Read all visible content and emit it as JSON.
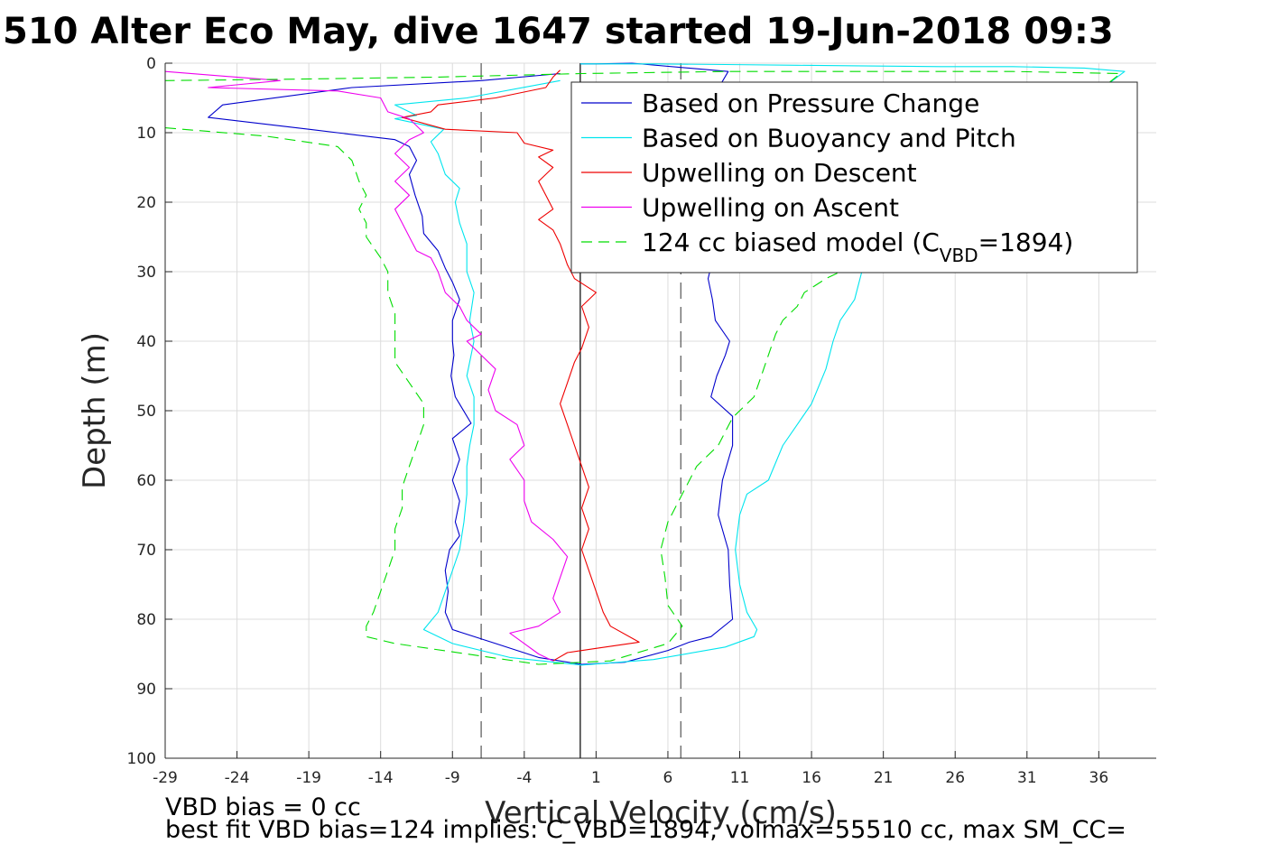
{
  "title": "510 Alter Eco May, dive 1647 started 19-Jun-2018 09:3",
  "footer": {
    "line1": "VBD bias = 0 cc",
    "line2": "best fit VBD bias=124 implies: C_VBD=1894, volmax=55510 cc, max SM_CC="
  },
  "chart_data": {
    "type": "line",
    "xlabel": "Vertical Velocity (cm/s)",
    "ylabel": "Depth (m)",
    "xlim": [
      -29,
      40
    ],
    "ylim": [
      0,
      100
    ],
    "y_reversed": true,
    "grid": true,
    "legend_placement": "top-right",
    "xticks": [
      -29,
      -24,
      -19,
      -14,
      -9,
      -4,
      1,
      6,
      11,
      16,
      21,
      26,
      31,
      36
    ],
    "yticks": [
      0,
      10,
      20,
      30,
      40,
      50,
      60,
      70,
      80,
      90,
      100
    ],
    "reference_lines": [
      {
        "type": "vertical",
        "x": -0.1,
        "style": "solid",
        "color": "#000000"
      },
      {
        "type": "vertical",
        "x": -7,
        "style": "dashed",
        "color": "#555555"
      },
      {
        "type": "vertical",
        "x": 6.9,
        "style": "dashed",
        "color": "#555555"
      }
    ],
    "series": [
      {
        "name": "Based on Pressure Change",
        "color": "#0000cc",
        "style": "solid",
        "points": [
          [
            -1.5,
            1.5
          ],
          [
            -7,
            2.5
          ],
          [
            -16,
            3.5
          ],
          [
            -25,
            6
          ],
          [
            -26,
            7.8
          ],
          [
            -19,
            9.5
          ],
          [
            -13,
            11
          ],
          [
            -12,
            12
          ],
          [
            -11.5,
            14
          ],
          [
            -12,
            16
          ],
          [
            -11.6,
            19
          ],
          [
            -11.1,
            22
          ],
          [
            -11,
            24.5
          ],
          [
            -10,
            27
          ],
          [
            -9.5,
            29.5
          ],
          [
            -9,
            31.5
          ],
          [
            -8.5,
            34
          ],
          [
            -9,
            37
          ],
          [
            -9,
            40
          ],
          [
            -8.9,
            42
          ],
          [
            -9.1,
            45
          ],
          [
            -8.8,
            48
          ],
          [
            -7.7,
            51.8
          ],
          [
            -9,
            54
          ],
          [
            -8.5,
            57
          ],
          [
            -9,
            60
          ],
          [
            -8.5,
            63
          ],
          [
            -8.8,
            66
          ],
          [
            -8.5,
            68
          ],
          [
            -9.2,
            70
          ],
          [
            -9.5,
            73
          ],
          [
            -9.3,
            76
          ],
          [
            -9.5,
            79
          ],
          [
            -9,
            81.5
          ],
          [
            -6,
            83.5
          ],
          [
            -3,
            85.5
          ],
          [
            0,
            86.5
          ],
          [
            3,
            86.2
          ],
          [
            6,
            84.5
          ],
          [
            7.5,
            83.3
          ],
          [
            9,
            82.5
          ],
          [
            10.5,
            80
          ],
          [
            10.3,
            75
          ],
          [
            10.2,
            70
          ],
          [
            9.5,
            65
          ],
          [
            9.8,
            60
          ],
          [
            10.5,
            55
          ],
          [
            10.5,
            50.8
          ],
          [
            9,
            48
          ],
          [
            9.4,
            45
          ],
          [
            10,
            42
          ],
          [
            10.3,
            40
          ],
          [
            9.3,
            37
          ],
          [
            9.1,
            34
          ],
          [
            8.8,
            31
          ],
          [
            9.5,
            25
          ],
          [
            10,
            18
          ],
          [
            9,
            8
          ],
          [
            9.4,
            4
          ],
          [
            10.2,
            1.2
          ],
          [
            3.5,
            0
          ],
          [
            1,
            0.1
          ],
          [
            -0.1,
            0.1
          ]
        ]
      },
      {
        "name": "Based on Buoyancy and Pitch",
        "color": "#00e5ee",
        "style": "solid",
        "points": [
          [
            -1.5,
            2.5
          ],
          [
            -8,
            5
          ],
          [
            -13,
            6
          ],
          [
            -11.5,
            7.5
          ],
          [
            -13,
            8
          ],
          [
            -9.6,
            9.5
          ],
          [
            -10.5,
            11.3
          ],
          [
            -10,
            13
          ],
          [
            -9.5,
            16
          ],
          [
            -8.5,
            18
          ],
          [
            -8.8,
            20
          ],
          [
            -8.5,
            23
          ],
          [
            -8,
            26
          ],
          [
            -8,
            30
          ],
          [
            -7.5,
            33
          ],
          [
            -7.8,
            37
          ],
          [
            -7.5,
            40
          ],
          [
            -8,
            45
          ],
          [
            -7.5,
            48
          ],
          [
            -7.5,
            52
          ],
          [
            -7.8,
            55
          ],
          [
            -8,
            58
          ],
          [
            -8,
            62
          ],
          [
            -8.2,
            66
          ],
          [
            -8.5,
            70
          ],
          [
            -9,
            73
          ],
          [
            -9.5,
            76
          ],
          [
            -10,
            79
          ],
          [
            -11,
            81.5
          ],
          [
            -9,
            83.5
          ],
          [
            -5,
            85.5
          ],
          [
            0,
            86.6
          ],
          [
            5,
            85.8
          ],
          [
            10,
            84
          ],
          [
            12,
            82.5
          ],
          [
            12.2,
            81.5
          ],
          [
            11.5,
            79
          ],
          [
            11,
            75
          ],
          [
            10.7,
            70
          ],
          [
            11,
            65
          ],
          [
            11.5,
            62
          ],
          [
            13,
            60
          ],
          [
            14,
            55
          ],
          [
            15,
            52
          ],
          [
            16,
            49
          ],
          [
            17,
            44
          ],
          [
            17.5,
            40
          ],
          [
            18,
            37
          ],
          [
            19,
            34
          ],
          [
            19.5,
            30
          ],
          [
            23,
            28
          ],
          [
            26,
            24
          ],
          [
            28,
            20
          ],
          [
            30,
            16
          ],
          [
            32,
            11
          ],
          [
            34,
            7
          ],
          [
            36,
            4
          ],
          [
            37.8,
            1.2
          ],
          [
            35,
            0.7
          ],
          [
            30,
            0.5
          ],
          [
            25,
            0.5
          ],
          [
            20,
            0.4
          ],
          [
            15,
            0.3
          ],
          [
            10,
            0.2
          ],
          [
            5,
            0.1
          ],
          [
            -0.1,
            0.1
          ]
        ]
      },
      {
        "name": "Upwelling on Descent",
        "color": "#ee0000",
        "style": "solid",
        "points": [
          [
            -1.5,
            1
          ],
          [
            -2,
            2
          ],
          [
            -2.5,
            3.5
          ],
          [
            -6,
            5
          ],
          [
            -10,
            6
          ],
          [
            -10.5,
            7
          ],
          [
            -12.5,
            7.8
          ],
          [
            -9.5,
            9.5
          ],
          [
            -4.5,
            10
          ],
          [
            -4,
            11.5
          ],
          [
            -2,
            12.5
          ],
          [
            -3,
            13.5
          ],
          [
            -2,
            15
          ],
          [
            -3,
            17
          ],
          [
            -2.5,
            19
          ],
          [
            -2,
            21
          ],
          [
            -3,
            22.5
          ],
          [
            -2,
            24
          ],
          [
            -1.5,
            26
          ],
          [
            -1,
            29
          ],
          [
            -0.5,
            31
          ],
          [
            1,
            33
          ],
          [
            0,
            35
          ],
          [
            0.5,
            38
          ],
          [
            0,
            41
          ],
          [
            -0.5,
            43
          ],
          [
            -1,
            46
          ],
          [
            -1.5,
            49
          ],
          [
            -1,
            52
          ],
          [
            -0.5,
            55
          ],
          [
            0,
            58
          ],
          [
            0.5,
            61
          ],
          [
            0,
            64
          ],
          [
            0.5,
            67
          ],
          [
            0,
            70
          ],
          [
            0.5,
            73
          ],
          [
            1,
            76
          ],
          [
            1.5,
            79
          ],
          [
            2,
            81
          ],
          [
            4,
            83.3
          ],
          [
            1,
            84.2
          ],
          [
            -1,
            84.8
          ],
          [
            -2,
            86
          ]
        ]
      },
      {
        "name": "Upwelling on Ascent",
        "color": "#ee00ee",
        "style": "solid",
        "points": [
          [
            -2,
            86
          ],
          [
            -3,
            85
          ],
          [
            -4,
            83.5
          ],
          [
            -5,
            82
          ],
          [
            -3,
            81
          ],
          [
            -1.5,
            79
          ],
          [
            -2,
            77
          ],
          [
            -1.5,
            74
          ],
          [
            -1,
            71
          ],
          [
            -2,
            68.5
          ],
          [
            -3.5,
            66
          ],
          [
            -4,
            63
          ],
          [
            -4,
            60
          ],
          [
            -5,
            57
          ],
          [
            -4,
            55
          ],
          [
            -4.5,
            52
          ],
          [
            -6,
            50
          ],
          [
            -6.5,
            47
          ],
          [
            -6,
            44
          ],
          [
            -7,
            42
          ],
          [
            -8,
            40
          ],
          [
            -7,
            39
          ],
          [
            -8,
            37
          ],
          [
            -8.5,
            35
          ],
          [
            -9.5,
            33
          ],
          [
            -10,
            30
          ],
          [
            -10.5,
            28
          ],
          [
            -11.5,
            27
          ],
          [
            -12,
            25
          ],
          [
            -12.5,
            23
          ],
          [
            -13,
            21
          ],
          [
            -12,
            19
          ],
          [
            -13,
            17
          ],
          [
            -12,
            15
          ],
          [
            -13,
            13
          ],
          [
            -12,
            11
          ],
          [
            -11,
            10
          ],
          [
            -12,
            8
          ],
          [
            -13.5,
            7
          ],
          [
            -14,
            5
          ],
          [
            -17,
            4
          ],
          [
            -26,
            3.5
          ],
          [
            -21,
            2.5
          ],
          [
            -29,
            1.2
          ]
        ]
      },
      {
        "name": "124 cc biased model (C_VBD=1894)",
        "color": "#00dd00",
        "style": "dashed",
        "points": [
          [
            -29,
            9.3
          ],
          [
            -22,
            10.5
          ],
          [
            -17,
            12
          ],
          [
            -16,
            14
          ],
          [
            -15.5,
            17
          ],
          [
            -15,
            19
          ],
          [
            -15.5,
            21
          ],
          [
            -15,
            23
          ],
          [
            -15,
            25
          ],
          [
            -14,
            28
          ],
          [
            -13.5,
            30
          ],
          [
            -13.5,
            33
          ],
          [
            -13,
            36
          ],
          [
            -13,
            40
          ],
          [
            -13,
            43
          ],
          [
            -12,
            46
          ],
          [
            -11,
            49
          ],
          [
            -11,
            52
          ],
          [
            -11.5,
            55
          ],
          [
            -12,
            58
          ],
          [
            -12.5,
            61
          ],
          [
            -12.5,
            64
          ],
          [
            -13,
            67
          ],
          [
            -13,
            70
          ],
          [
            -13.5,
            73
          ],
          [
            -14,
            76
          ],
          [
            -14.5,
            79
          ],
          [
            -15,
            81
          ],
          [
            -15,
            82.5
          ],
          [
            -13,
            83.5
          ],
          [
            -8,
            85
          ],
          [
            -3,
            86.5
          ],
          [
            2,
            86
          ],
          [
            6,
            83.5
          ],
          [
            7,
            81
          ],
          [
            6,
            78
          ],
          [
            5.8,
            74
          ],
          [
            5.5,
            70
          ],
          [
            6,
            66
          ],
          [
            7,
            62
          ],
          [
            8,
            58
          ],
          [
            9.5,
            55
          ],
          [
            10.5,
            51
          ],
          [
            12,
            48
          ],
          [
            12.5,
            45
          ],
          [
            13,
            42
          ],
          [
            13.5,
            39
          ],
          [
            14,
            37
          ],
          [
            15,
            35
          ],
          [
            15.5,
            33
          ],
          [
            17,
            31
          ],
          [
            20,
            28
          ],
          [
            22,
            25
          ],
          [
            24,
            22
          ],
          [
            26,
            19
          ],
          [
            28,
            16
          ],
          [
            30,
            13
          ],
          [
            32,
            10
          ],
          [
            34,
            7
          ],
          [
            36,
            4
          ],
          [
            37.5,
            1.5
          ],
          [
            30,
            1.2
          ],
          [
            20,
            1.2
          ],
          [
            10,
            1.2
          ],
          [
            0,
            1.5
          ],
          [
            -10,
            2
          ],
          [
            -20,
            2.3
          ],
          [
            -29,
            2.5
          ]
        ]
      }
    ]
  }
}
